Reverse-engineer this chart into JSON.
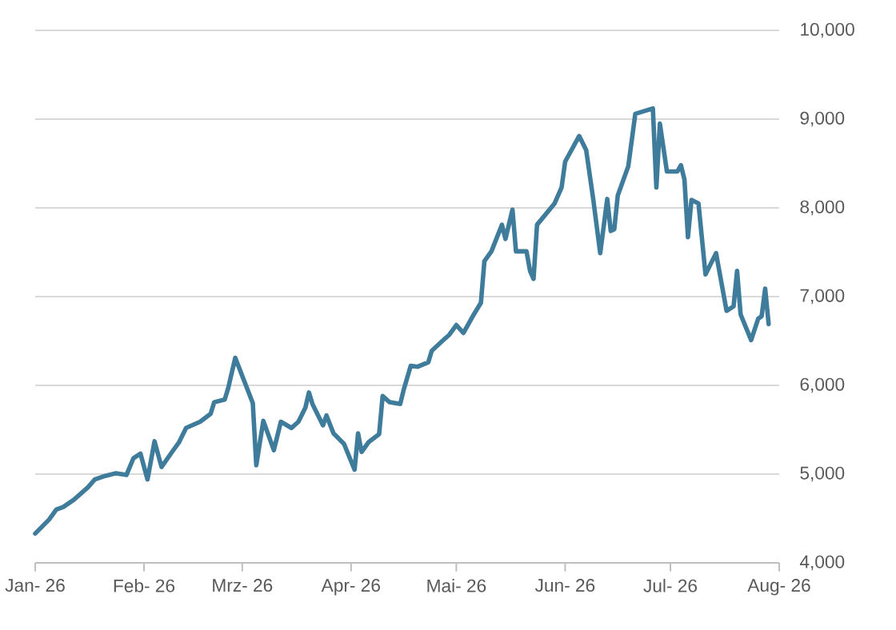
{
  "chart_data": {
    "type": "line",
    "grid": "y",
    "line_style": "solid",
    "xlim": [
      "2026-01-01",
      "2026-08-01"
    ],
    "xticks": [
      {
        "value": "2026-01-01",
        "label": "Jan- 26"
      },
      {
        "value": "2026-02-01",
        "label": "Feb- 26"
      },
      {
        "value": "2026-03-01",
        "label": "Mrz- 26"
      },
      {
        "value": "2026-04-01",
        "label": "Apr- 26"
      },
      {
        "value": "2026-05-01",
        "label": "Mai- 26"
      },
      {
        "value": "2026-06-01",
        "label": "Jun- 26"
      },
      {
        "value": "2026-07-01",
        "label": "Jul- 26"
      },
      {
        "value": "2026-08-01",
        "label": "Aug- 26"
      }
    ],
    "ylim": [
      4000,
      10000
    ],
    "yticks": [
      {
        "value": 4000,
        "label": "4,000"
      },
      {
        "value": 5000,
        "label": "5,000"
      },
      {
        "value": 6000,
        "label": "6,000"
      },
      {
        "value": 7000,
        "label": "7,000"
      },
      {
        "value": 8000,
        "label": "8,000"
      },
      {
        "value": 9000,
        "label": "9,000"
      },
      {
        "value": 10000,
        "label": "10,000"
      }
    ],
    "series": [
      {
        "color": "#3f7c9c",
        "x": [
          "2026-01-01",
          "2026-01-05",
          "2026-01-07",
          "2026-01-09",
          "2026-01-12",
          "2026-01-16",
          "2026-01-18",
          "2026-01-21",
          "2026-01-24",
          "2026-01-27",
          "2026-01-29",
          "2026-01-31",
          "2026-02-02",
          "2026-02-04",
          "2026-02-06",
          "2026-02-09",
          "2026-02-11",
          "2026-02-13",
          "2026-02-17",
          "2026-02-20",
          "2026-02-21",
          "2026-02-24",
          "2026-02-25",
          "2026-02-27",
          "2026-03-04",
          "2026-03-05",
          "2026-03-07",
          "2026-03-10",
          "2026-03-12",
          "2026-03-15",
          "2026-03-17",
          "2026-03-19",
          "2026-03-20",
          "2026-03-21",
          "2026-03-24",
          "2026-03-25",
          "2026-03-27",
          "2026-03-30",
          "2026-04-02",
          "2026-04-03",
          "2026-04-04",
          "2026-04-06",
          "2026-04-09",
          "2026-04-10",
          "2026-04-12",
          "2026-04-15",
          "2026-04-16",
          "2026-04-18",
          "2026-04-20",
          "2026-04-23",
          "2026-04-24",
          "2026-04-27",
          "2026-04-29",
          "2026-05-01",
          "2026-05-03",
          "2026-05-06",
          "2026-05-08",
          "2026-05-09",
          "2026-05-11",
          "2026-05-14",
          "2026-05-15",
          "2026-05-17",
          "2026-05-18",
          "2026-05-21",
          "2026-05-22",
          "2026-05-23",
          "2026-05-24",
          "2026-05-29",
          "2026-05-31",
          "2026-06-01",
          "2026-06-05",
          "2026-06-07",
          "2026-06-09",
          "2026-06-11",
          "2026-06-13",
          "2026-06-14",
          "2026-06-15",
          "2026-06-16",
          "2026-06-19",
          "2026-06-21",
          "2026-06-26",
          "2026-06-27",
          "2026-06-28",
          "2026-06-30",
          "2026-07-03",
          "2026-07-04",
          "2026-07-05",
          "2026-07-06",
          "2026-07-07",
          "2026-07-09",
          "2026-07-11",
          "2026-07-14",
          "2026-07-17",
          "2026-07-19",
          "2026-07-20",
          "2026-07-21",
          "2026-07-24",
          "2026-07-26",
          "2026-07-27",
          "2026-07-28",
          "2026-07-29"
        ],
        "values": [
          4330,
          4490,
          4600,
          4630,
          4710,
          4850,
          4940,
          4980,
          5010,
          4990,
          5180,
          5230,
          4940,
          5370,
          5080,
          5250,
          5360,
          5520,
          5590,
          5680,
          5810,
          5840,
          5970,
          6310,
          5800,
          5100,
          5600,
          5270,
          5590,
          5520,
          5590,
          5750,
          5920,
          5790,
          5550,
          5660,
          5460,
          5340,
          5050,
          5460,
          5250,
          5360,
          5450,
          5880,
          5810,
          5790,
          5950,
          6220,
          6210,
          6260,
          6390,
          6500,
          6570,
          6680,
          6590,
          6800,
          6930,
          7400,
          7510,
          7810,
          7650,
          7980,
          7510,
          7510,
          7290,
          7200,
          7810,
          8050,
          8230,
          8520,
          8810,
          8650,
          8100,
          7490,
          8100,
          7740,
          7760,
          8140,
          8470,
          9060,
          9120,
          8230,
          8950,
          8410,
          8410,
          8480,
          8320,
          7670,
          8090,
          8050,
          7250,
          7490,
          6840,
          6890,
          7290,
          6800,
          6510,
          6750,
          6780,
          7090,
          6690
        ]
      }
    ]
  }
}
